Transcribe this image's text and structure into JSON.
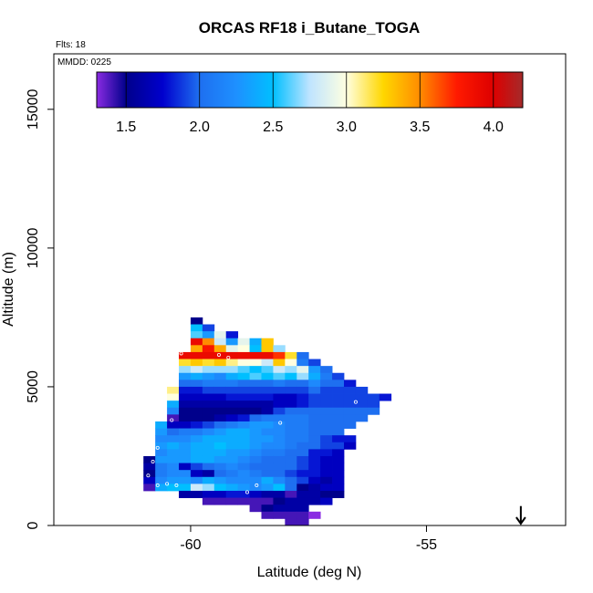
{
  "chart_data": {
    "type": "heatmap",
    "title": "ORCAS RF18 i_Butane_TOGA",
    "flights_label": "Flts: 18",
    "date_label": "MMDD: 0225",
    "xlabel": "Latitude (deg N)",
    "ylabel": "Altitude (m)",
    "xlim": [
      -62.9,
      -52.05
    ],
    "ylim": [
      0,
      17000
    ],
    "x_ticks": [
      -60,
      -55
    ],
    "y_ticks": [
      0,
      5000,
      10000,
      15000
    ],
    "colorbar": {
      "range": [
        1.3,
        4.2
      ],
      "ticks": [
        1.5,
        2.0,
        2.5,
        3.0,
        3.5,
        4.0
      ],
      "tick_labels": [
        "1.5",
        "2.0",
        "2.5",
        "3.0",
        "3.5",
        "4.0"
      ],
      "stops": [
        {
          "v": 1.3,
          "color": "#8a2be2"
        },
        {
          "v": 1.5,
          "color": "#00008b"
        },
        {
          "v": 1.75,
          "color": "#0000cd"
        },
        {
          "v": 2.0,
          "color": "#1e6ff0"
        },
        {
          "v": 2.25,
          "color": "#1e90ff"
        },
        {
          "v": 2.5,
          "color": "#00bfff"
        },
        {
          "v": 2.75,
          "color": "#bfe4ff"
        },
        {
          "v": 3.0,
          "color": "#ffffe0"
        },
        {
          "v": 3.25,
          "color": "#ffd700"
        },
        {
          "v": 3.5,
          "color": "#ff8c00"
        },
        {
          "v": 3.75,
          "color": "#ff1a00"
        },
        {
          "v": 4.0,
          "color": "#dd0000"
        },
        {
          "v": 4.2,
          "color": "#a52a2a"
        }
      ]
    },
    "cell_size": {
      "dlat": 0.25,
      "dalt": 250
    },
    "rows": [
      {
        "alt": 7250,
        "lat0": -60.0,
        "values": [
          1.5
        ]
      },
      {
        "alt": 7000,
        "lat0": -60.0,
        "values": [
          2.5,
          1.9
        ]
      },
      {
        "alt": 6750,
        "lat0": -60.0,
        "values": [
          2.6,
          2.3,
          2.9,
          1.8
        ]
      },
      {
        "alt": 6500,
        "lat0": -60.0,
        "values": [
          3.9,
          3.5,
          2.8,
          2.3,
          2.9,
          2.4,
          3.3
        ]
      },
      {
        "alt": 6250,
        "lat0": -60.0,
        "values": [
          3.4,
          3.8,
          3.4,
          2.9,
          3.0,
          2.5,
          3.3,
          2.7
        ]
      },
      {
        "alt": 6000,
        "lat0": -60.25,
        "values": [
          3.9,
          3.9,
          3.9,
          3.9,
          3.9,
          3.9,
          3.9,
          3.9,
          3.7,
          3.2,
          2.0
        ]
      },
      {
        "alt": 5750,
        "lat0": -60.25,
        "values": [
          3.2,
          3.3,
          3.2,
          3.3,
          3.1,
          3.0,
          3.0,
          2.8,
          3.3,
          3.0,
          2.1,
          1.9
        ]
      },
      {
        "alt": 5500,
        "lat0": -60.25,
        "values": [
          2.7,
          2.8,
          2.7,
          2.7,
          2.7,
          2.6,
          2.5,
          2.6,
          2.8,
          2.7,
          2.9,
          2.3,
          2.0
        ]
      },
      {
        "alt": 5250,
        "lat0": -60.25,
        "values": [
          2.3,
          2.4,
          2.3,
          2.2,
          2.4,
          2.5,
          2.6,
          2.5,
          2.6,
          2.5,
          2.7,
          2.4,
          2.1,
          1.9
        ]
      },
      {
        "alt": 5000,
        "lat0": -60.25,
        "values": [
          2.0,
          2.0,
          2.1,
          2.1,
          2.1,
          2.0,
          2.0,
          2.0,
          2.1,
          2.0,
          2.0,
          2.2,
          2.0,
          2.0,
          1.8
        ]
      },
      {
        "alt": 4750,
        "lat0": -60.5,
        "values": [
          3.1,
          1.8,
          1.8,
          1.9,
          1.9,
          1.9,
          1.9,
          1.9,
          1.9,
          1.9,
          1.9,
          1.9,
          2.0,
          1.9,
          1.9,
          1.9,
          1.9
        ]
      },
      {
        "alt": 4500,
        "lat0": -60.5,
        "values": [
          3.0,
          1.7,
          1.7,
          1.7,
          1.7,
          1.8,
          1.8,
          1.8,
          1.8,
          1.7,
          1.7,
          1.8,
          1.9,
          1.9,
          1.9,
          1.9,
          1.9,
          1.9,
          1.8
        ]
      },
      {
        "alt": 4250,
        "lat0": -60.5,
        "values": [
          2.4,
          1.6,
          1.6,
          1.6,
          1.6,
          1.6,
          1.6,
          1.6,
          1.6,
          1.7,
          1.7,
          1.8,
          1.9,
          1.9,
          1.9,
          1.9,
          1.9,
          1.9
        ]
      },
      {
        "alt": 4000,
        "lat0": -60.5,
        "values": [
          2.2,
          1.5,
          1.5,
          1.5,
          1.5,
          1.5,
          1.5,
          1.5,
          1.6,
          1.9,
          2.0,
          2.0,
          2.0,
          2.0,
          2.0,
          2.0,
          2.0,
          2.0
        ]
      },
      {
        "alt": 3750,
        "lat0": -60.5,
        "values": [
          1.4,
          1.5,
          1.5,
          1.5,
          1.6,
          1.7,
          1.8,
          2.0,
          2.1,
          2.1,
          2.1,
          2.1,
          2.0,
          2.0,
          2.0,
          2.0,
          2.0
        ]
      },
      {
        "alt": 3500,
        "lat0": -60.75,
        "values": [
          2.4,
          1.7,
          1.7,
          1.8,
          1.9,
          2.0,
          2.1,
          2.2,
          2.3,
          2.3,
          2.2,
          2.1,
          2.1,
          2.0,
          2.0,
          2.0,
          2.0
        ]
      },
      {
        "alt": 3250,
        "lat0": -60.75,
        "values": [
          2.3,
          2.0,
          2.1,
          2.1,
          2.2,
          2.3,
          2.4,
          2.4,
          2.3,
          2.2,
          2.2,
          2.1,
          2.1,
          2.0,
          2.0,
          2.0
        ]
      },
      {
        "alt": 3000,
        "lat0": -60.75,
        "values": [
          2.2,
          2.2,
          2.2,
          2.3,
          2.4,
          2.4,
          2.4,
          2.4,
          2.3,
          2.3,
          2.2,
          2.1,
          2.1,
          2.0,
          1.9,
          1.8,
          1.8
        ]
      },
      {
        "alt": 2750,
        "lat0": -60.75,
        "values": [
          2.3,
          2.4,
          2.3,
          2.4,
          2.4,
          2.5,
          2.4,
          2.4,
          2.3,
          2.2,
          2.2,
          2.1,
          2.0,
          2.0,
          1.9,
          1.9,
          1.7
        ]
      },
      {
        "alt": 2500,
        "lat0": -60.75,
        "values": [
          2.2,
          2.3,
          2.3,
          2.4,
          2.4,
          2.4,
          2.3,
          2.3,
          2.2,
          2.1,
          2.1,
          2.0,
          2.0,
          1.8,
          1.8,
          1.7
        ]
      },
      {
        "alt": 2250,
        "lat0": -61.0,
        "values": [
          1.5,
          2.3,
          2.3,
          2.3,
          2.4,
          2.4,
          2.3,
          2.3,
          2.2,
          2.1,
          2.0,
          2.0,
          2.0,
          1.9,
          1.8,
          1.7,
          1.7
        ]
      },
      {
        "alt": 2000,
        "lat0": -61.0,
        "values": [
          1.6,
          2.1,
          2.2,
          1.7,
          1.9,
          2.0,
          2.1,
          2.2,
          2.1,
          2.0,
          2.0,
          2.0,
          2.0,
          1.9,
          1.8,
          1.7,
          1.7
        ]
      },
      {
        "alt": 1750,
        "lat0": -61.0,
        "values": [
          1.5,
          2.1,
          2.2,
          2.2,
          1.7,
          1.6,
          2.0,
          2.1,
          2.2,
          2.1,
          2.0,
          2.0,
          1.9,
          1.8,
          1.8,
          1.7,
          1.7
        ]
      },
      {
        "alt": 1500,
        "lat0": -61.0,
        "values": [
          1.7,
          2.2,
          2.3,
          2.3,
          2.2,
          2.4,
          2.3,
          2.2,
          2.2,
          2.2,
          2.4,
          2.2,
          2.0,
          1.9,
          1.7,
          1.6,
          1.7
        ]
      },
      {
        "alt": 1250,
        "lat0": -61.0,
        "values": [
          1.4,
          2.4,
          2.5,
          2.5,
          2.8,
          2.7,
          2.5,
          2.4,
          2.3,
          2.2,
          2.3,
          2.5,
          2.0,
          1.5,
          1.6,
          1.7,
          1.7
        ]
      },
      {
        "alt": 1000,
        "lat0": -60.25,
        "values": [
          1.6,
          1.6,
          1.7,
          1.7,
          1.8,
          1.8,
          1.7,
          1.6,
          1.6,
          1.4,
          1.6,
          1.6,
          1.5,
          1.5
        ]
      },
      {
        "alt": 750,
        "lat0": -59.75,
        "values": [
          1.4,
          1.4,
          1.4,
          1.4,
          1.4,
          1.4,
          1.5,
          1.6,
          1.6,
          1.6,
          1.7
        ]
      },
      {
        "alt": 500,
        "lat0": -58.75,
        "values": [
          1.4,
          1.5,
          1.6,
          1.6,
          1.6
        ]
      },
      {
        "alt": 250,
        "lat0": -58.5,
        "values": [
          1.4,
          1.4,
          1.4,
          1.4,
          1.3
        ]
      },
      {
        "alt": 0,
        "lat0": -58.0,
        "values": [
          1.4,
          1.4
        ]
      }
    ],
    "sample_points": [
      {
        "lat": -60.2,
        "alt": 7150
      },
      {
        "lat": -60.2,
        "alt": 6200
      },
      {
        "lat": -59.4,
        "alt": 6150
      },
      {
        "lat": -60.3,
        "alt": 5450
      },
      {
        "lat": -60.4,
        "alt": 3800
      },
      {
        "lat": -59.2,
        "alt": 6050
      },
      {
        "lat": -58.1,
        "alt": 3700
      },
      {
        "lat": -60.7,
        "alt": 2800
      },
      {
        "lat": -60.8,
        "alt": 2300
      },
      {
        "lat": -60.9,
        "alt": 1800
      },
      {
        "lat": -60.7,
        "alt": 1450
      },
      {
        "lat": -60.5,
        "alt": 1500
      },
      {
        "lat": -60.3,
        "alt": 1450
      },
      {
        "lat": -58.8,
        "alt": 1200
      },
      {
        "lat": -58.3,
        "alt": 150
      },
      {
        "lat": -58.1,
        "alt": 150
      },
      {
        "lat": -56.5,
        "alt": 4450
      },
      {
        "lat": -58.6,
        "alt": 1450
      }
    ],
    "arrow": {
      "lat": -53.0,
      "alt_top": 700,
      "alt_bottom": 0
    }
  }
}
